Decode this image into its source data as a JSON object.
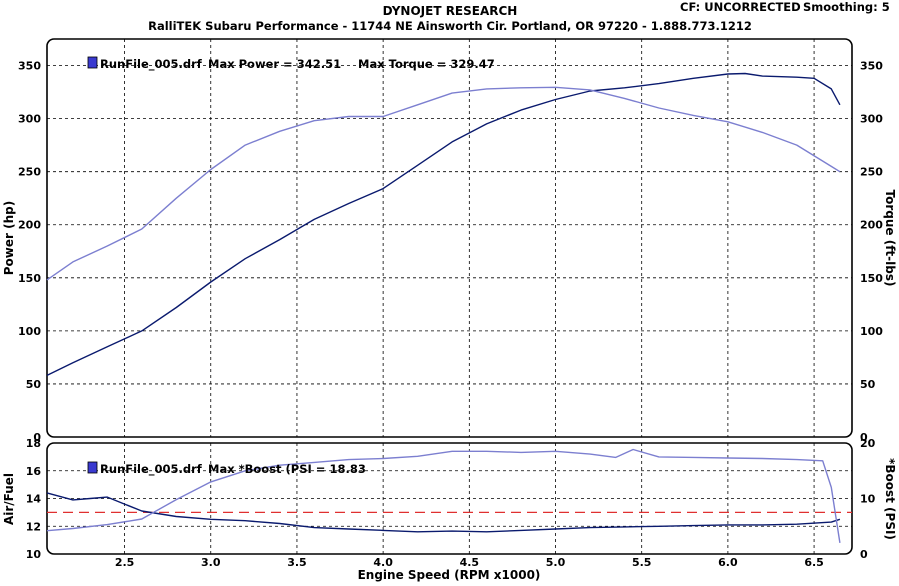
{
  "header": {
    "title": "DYNOJET RESEARCH",
    "subtitle": "RalliTEK Subaru Performance - 11744 NE Ainsworth Cir. Portland, OR 97220 - 1.888.773.1212",
    "cf_label": "CF: UNCORRECTED",
    "smoothing_label": "Smoothing: 5"
  },
  "colors": {
    "power": "#0a1a6e",
    "torque": "#7c7fd0",
    "boost": "#7c7fd0",
    "airfuel": "#0a1a6e",
    "afr_reference": "#e03030",
    "grid": "#000000",
    "legend_marker": "#3a3ad0"
  },
  "chart_data": [
    {
      "type": "line",
      "panel": "upper",
      "legend": {
        "file": "RunFile_005.drf",
        "max_power_label": "Max Power = 342.51",
        "max_torque_label": "Max Torque = 329.47"
      },
      "xlim": [
        2.05,
        6.72
      ],
      "ylim": [
        0,
        375
      ],
      "y_ticks": [
        0,
        50,
        100,
        150,
        200,
        250,
        300,
        350
      ],
      "ylabel": "Power (hp)",
      "ylabel_right": "Torque (ft-lbs)",
      "grid": true,
      "series": [
        {
          "name": "Power",
          "axis": "left",
          "x": [
            2.05,
            2.2,
            2.4,
            2.6,
            2.8,
            3.0,
            3.2,
            3.4,
            3.6,
            3.8,
            4.0,
            4.2,
            4.4,
            4.6,
            4.8,
            5.0,
            5.2,
            5.4,
            5.6,
            5.8,
            6.0,
            6.1,
            6.2,
            6.4,
            6.5,
            6.6,
            6.65
          ],
          "y": [
            58,
            70,
            85,
            100,
            122,
            146,
            168,
            186,
            205,
            220,
            234,
            256,
            278,
            295,
            308,
            318,
            326,
            329,
            333,
            338,
            342,
            342.5,
            340,
            339,
            338,
            328,
            313
          ]
        },
        {
          "name": "Torque",
          "axis": "right",
          "x": [
            2.05,
            2.2,
            2.4,
            2.6,
            2.8,
            3.0,
            3.2,
            3.4,
            3.6,
            3.8,
            4.0,
            4.2,
            4.4,
            4.6,
            4.8,
            5.0,
            5.2,
            5.4,
            5.6,
            5.8,
            6.0,
            6.2,
            6.4,
            6.6,
            6.65
          ],
          "y": [
            148,
            165,
            180,
            196,
            225,
            252,
            275,
            288,
            298,
            302,
            302,
            313,
            324,
            328,
            329,
            329.5,
            327,
            319,
            310,
            303,
            297,
            287,
            275,
            255,
            250
          ]
        }
      ]
    },
    {
      "type": "line",
      "panel": "lower",
      "legend": {
        "file": "RunFile_005.drf",
        "max_boost_label": "Max *Boost (PSI = 18.83"
      },
      "xlim": [
        2.05,
        6.72
      ],
      "x_ticks": [
        2.5,
        3.0,
        3.5,
        4.0,
        4.5,
        5.0,
        5.5,
        6.0,
        6.5
      ],
      "x_tick_labels": [
        "2.5",
        "3.0",
        "3.5",
        "4.0",
        "4.5",
        "5.0",
        "5.5",
        "6.0",
        "6.5"
      ],
      "xlabel": "Engine Speed (RPM x1000)",
      "ylim": [
        10,
        18
      ],
      "y_ticks": [
        10,
        12,
        14,
        16,
        18
      ],
      "ylim_right": [
        0,
        20
      ],
      "y_ticks_right": [
        0,
        10,
        20
      ],
      "ylabel": "Air/Fuel",
      "ylabel_right": "*Boost (PSI)",
      "reference_line": {
        "y": 13,
        "axis": "left",
        "style": "dashed"
      },
      "grid": true,
      "series": [
        {
          "name": "Air/Fuel",
          "axis": "left",
          "x": [
            2.05,
            2.2,
            2.3,
            2.4,
            2.5,
            2.6,
            2.8,
            3.0,
            3.2,
            3.4,
            3.6,
            3.8,
            4.0,
            4.2,
            4.4,
            4.6,
            4.8,
            5.0,
            5.2,
            5.4,
            5.6,
            5.8,
            6.0,
            6.2,
            6.4,
            6.6,
            6.65
          ],
          "y": [
            14.4,
            13.9,
            14.0,
            14.1,
            13.6,
            13.1,
            12.7,
            12.5,
            12.4,
            12.2,
            11.9,
            11.8,
            11.7,
            11.6,
            11.65,
            11.6,
            11.7,
            11.8,
            11.9,
            11.95,
            12.0,
            12.05,
            12.1,
            12.1,
            12.15,
            12.3,
            12.5
          ]
        },
        {
          "name": "*Boost",
          "axis": "right",
          "x": [
            2.05,
            2.2,
            2.4,
            2.6,
            2.8,
            3.0,
            3.2,
            3.4,
            3.6,
            3.8,
            4.0,
            4.2,
            4.4,
            4.6,
            4.8,
            5.0,
            5.2,
            5.35,
            5.45,
            5.6,
            5.8,
            6.0,
            6.2,
            6.4,
            6.55,
            6.6,
            6.65
          ],
          "y": [
            4.2,
            4.6,
            5.3,
            6.3,
            9.8,
            13.0,
            15.0,
            16.0,
            16.5,
            17.0,
            17.2,
            17.6,
            18.5,
            18.5,
            18.3,
            18.5,
            18.0,
            17.4,
            18.83,
            17.5,
            17.4,
            17.3,
            17.2,
            17.0,
            16.8,
            12.0,
            2.0
          ]
        }
      ]
    }
  ]
}
